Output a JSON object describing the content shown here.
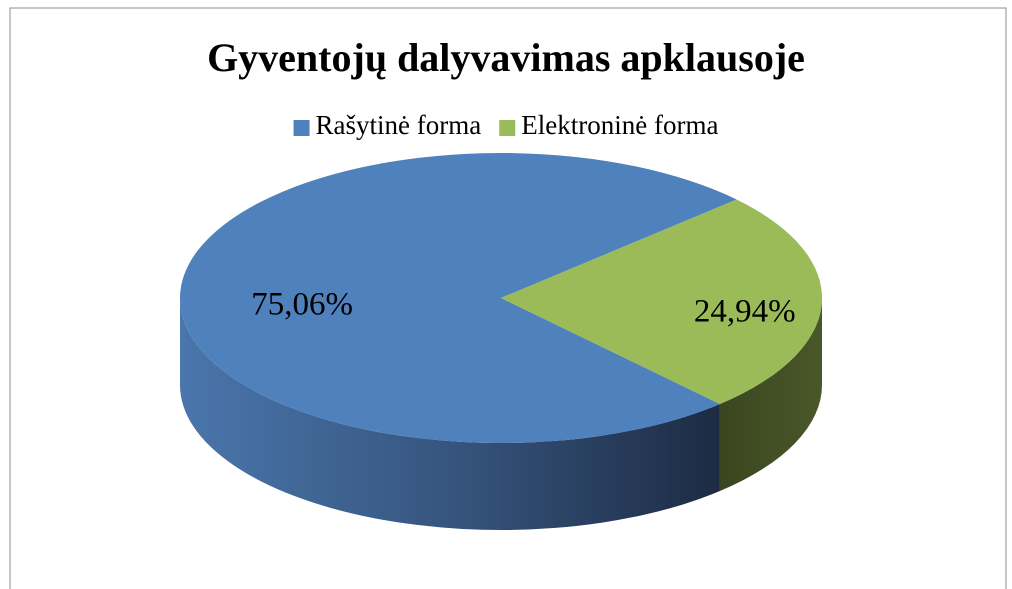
{
  "chart_data": {
    "type": "pie3d",
    "title": "Gyventojų dalyvavimas apklausoje",
    "categories": [
      "Rašytinė forma",
      "Elektroninė forma"
    ],
    "values": [
      75.06,
      24.94
    ],
    "value_labels": [
      "75,06%",
      "24,94%"
    ],
    "colors": [
      "#4f81bd",
      "#9bbb59"
    ],
    "legend": "top"
  }
}
